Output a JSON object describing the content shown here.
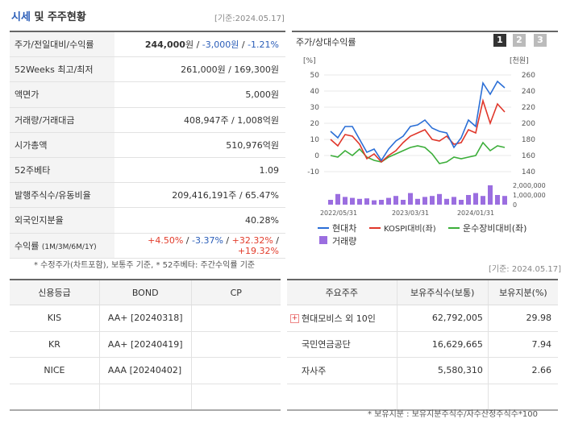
{
  "header": {
    "title_a": "시세",
    "title_b": "및 주주현황",
    "ref_date": "[기준:2024.05.17]"
  },
  "info": [
    {
      "key": "주가/전일대비/수익률",
      "v1": "244,000",
      "v1u": "원",
      "sep1": " / ",
      "v2": "-3,000원",
      "sep2": " / ",
      "v3": "-1.21%"
    },
    {
      "key": "52Weeks 최고/최저",
      "value": "261,000원 / 169,300원"
    },
    {
      "key": "액면가",
      "value": "5,000원"
    },
    {
      "key": "거래량/거래대금",
      "value": "408,947주 / 1,008억원"
    },
    {
      "key": "시가총액",
      "value": "510,976억원"
    },
    {
      "key": "52주베타",
      "value": "1.09"
    },
    {
      "key": "발행주식수/유동비율",
      "value": "209,416,191주 / 65.47%"
    },
    {
      "key": "외국인지분율",
      "value": "40.28%"
    }
  ],
  "returns": {
    "key": "수익률",
    "key_sub": "(1M/3M/6M/1Y)",
    "r1": "+4.50%",
    "r2": "-3.37%",
    "r3": "+32.32%",
    "r4": "+19.32%",
    "sep": " / "
  },
  "info_note": "* 수정주가(차트포함), 보통주 기준, * 52주베타: 주간수익률 기준",
  "chart": {
    "title": "주가/상대수익률",
    "pages": [
      "1",
      "2",
      "3"
    ],
    "left_unit": "[%]",
    "right_unit": "[천원]",
    "legend": [
      "현대차",
      "KOSPI대비(좌)",
      "운수장비대비(좌)",
      "거래량"
    ]
  },
  "chart_data": {
    "type": "line",
    "x_ticks": [
      "2022/05/31",
      "2023/03/31",
      "2024/01/31"
    ],
    "left_axis": {
      "label": "[%]",
      "ticks": [
        -10,
        0,
        10,
        20,
        30,
        40,
        50
      ],
      "ylim": [
        -10,
        50
      ]
    },
    "right_axis": {
      "label": "[천원]",
      "ticks": [
        140,
        160,
        180,
        200,
        220,
        240,
        260
      ],
      "ylim": [
        140,
        260
      ]
    },
    "volume_axis": {
      "ticks": [
        "2,000,000",
        "1,000,000",
        "0"
      ]
    },
    "series": [
      {
        "name": "현대차",
        "color": "#2a6ed6",
        "values": [
          15,
          11,
          18,
          18,
          10,
          2,
          4,
          -3,
          4,
          9,
          12,
          18,
          19,
          22,
          17,
          15,
          14,
          5,
          11,
          22,
          18,
          45,
          38,
          46,
          42
        ]
      },
      {
        "name": "KOSPI대비(좌)",
        "color": "#e0362a",
        "values": [
          10,
          6,
          13,
          12,
          7,
          -2,
          1,
          -4,
          0,
          3,
          8,
          12,
          14,
          16,
          10,
          9,
          12,
          7,
          8,
          16,
          14,
          34,
          20,
          32,
          27
        ]
      },
      {
        "name": "운수장비대비(좌)",
        "color": "#3cae3a",
        "values": [
          0,
          -1,
          3,
          0,
          4,
          -1,
          -3,
          -4,
          -1,
          1,
          3,
          5,
          6,
          5,
          1,
          -5,
          -4,
          -1,
          -2,
          -1,
          0,
          8,
          3,
          6,
          5
        ]
      },
      {
        "name": "거래량",
        "color": "#9b6ee0",
        "values": [
          500000,
          1100000,
          800000,
          700000,
          600000,
          650000,
          450000,
          500000,
          700000,
          900000,
          500000,
          1200000,
          600000,
          800000,
          900000,
          1100000,
          600000,
          800000,
          500000,
          1000000,
          1200000,
          900000,
          2000000,
          1000000,
          900000
        ]
      }
    ]
  },
  "chart_ref_date": "[기준: 2024.05.17]",
  "credit": {
    "headers": [
      "신용등급",
      "BOND",
      "CP"
    ],
    "rows": [
      {
        "agency": "KIS",
        "bond": "AA+  [20240318]",
        "cp": ""
      },
      {
        "agency": "KR",
        "bond": "AA+  [20240419]",
        "cp": ""
      },
      {
        "agency": "NICE",
        "bond": "AAA  [20240402]",
        "cp": ""
      },
      {
        "agency": "",
        "bond": "",
        "cp": ""
      }
    ]
  },
  "holders": {
    "headers": [
      "주요주주",
      "보유주식수(보통)",
      "보유지분(%)"
    ],
    "rows": [
      {
        "name": "현대모비스 외 10인",
        "shares": "62,792,005",
        "pct": "29.98",
        "expand": "+"
      },
      {
        "name": "국민연금공단",
        "shares": "16,629,665",
        "pct": "7.94"
      },
      {
        "name": "자사주",
        "shares": "5,580,310",
        "pct": "2.66"
      },
      {
        "name": "",
        "shares": "",
        "pct": ""
      }
    ],
    "note": "* 보유지분 : 보유지분주식수/자수산정주식수*100"
  }
}
